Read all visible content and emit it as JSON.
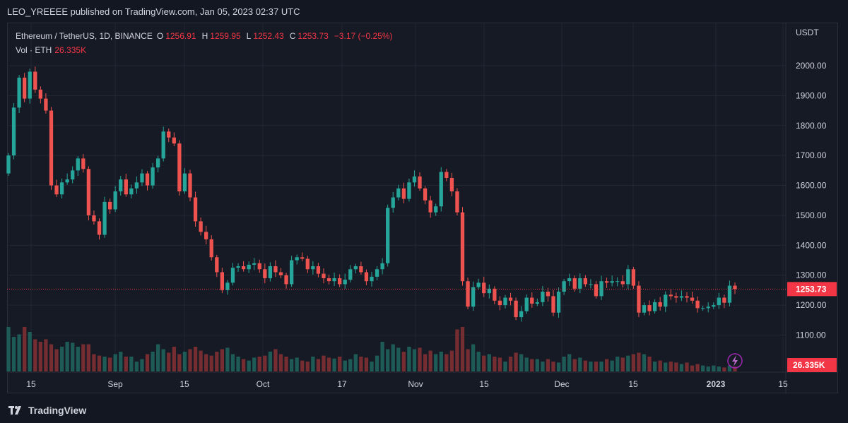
{
  "header": {
    "published_text": "LEO_YREEEE published on TradingView.com, Jan 05, 2023 02:37 UTC"
  },
  "footer": {
    "brand": "TradingView"
  },
  "legend": {
    "symbol": "Ethereum / TetherUS, 1D, BINANCE",
    "o_label": "O",
    "o_value": "1256.91",
    "h_label": "H",
    "h_value": "1259.95",
    "l_label": "L",
    "l_value": "1252.43",
    "c_label": "C",
    "c_value": "1253.73",
    "change": "−3.17 (−0.25%)",
    "vol_label": "Vol · ETH",
    "vol_value": "26.335K"
  },
  "colors": {
    "up": "#26a69a",
    "down": "#ef5350",
    "up_vol": "#1f5f5a",
    "down_vol": "#7a2e33",
    "badge": "#f23645",
    "grid": "#232733"
  },
  "chart_data": {
    "type": "candlestick",
    "currency_label": "USDT",
    "y_ticks": [
      1100,
      1200,
      1300,
      1400,
      1500,
      1600,
      1700,
      1800,
      1900,
      2000
    ],
    "y_tick_labels": [
      "1100.00",
      "1200.00",
      "1300.00",
      "1400.00",
      "1500.00",
      "1600.00",
      "1700.00",
      "1800.00",
      "1900.00",
      "2000.00"
    ],
    "x_tick_labels": [
      "15",
      "Sep",
      "15",
      "Oct",
      "17",
      "Nov",
      "15",
      "Dec",
      "15",
      "2023",
      "15"
    ],
    "last_price": 1253.73,
    "last_price_label": "1253.73",
    "last_volume_label": "26.335K",
    "closes": [
      1700,
      1860,
      1960,
      1890,
      1980,
      1920,
      1890,
      1850,
      1600,
      1570,
      1610,
      1620,
      1650,
      1690,
      1655,
      1500,
      1480,
      1435,
      1545,
      1520,
      1580,
      1620,
      1570,
      1590,
      1610,
      1640,
      1600,
      1660,
      1690,
      1780,
      1760,
      1740,
      1580,
      1640,
      1560,
      1480,
      1445,
      1420,
      1360,
      1310,
      1250,
      1275,
      1325,
      1330,
      1320,
      1335,
      1340,
      1320,
      1290,
      1330,
      1310,
      1300,
      1270,
      1350,
      1360,
      1355,
      1320,
      1330,
      1305,
      1290,
      1280,
      1290,
      1270,
      1285,
      1320,
      1330,
      1310,
      1280,
      1295,
      1320,
      1340,
      1525,
      1560,
      1590,
      1555,
      1610,
      1630,
      1590,
      1550,
      1510,
      1530,
      1645,
      1625,
      1580,
      1510,
      1280,
      1195,
      1260,
      1275,
      1240,
      1255,
      1215,
      1200,
      1225,
      1215,
      1160,
      1180,
      1225,
      1205,
      1210,
      1245,
      1230,
      1175,
      1245,
      1280,
      1290,
      1255,
      1290,
      1270,
      1270,
      1230,
      1280,
      1275,
      1280,
      1280,
      1270,
      1320,
      1265,
      1175,
      1200,
      1180,
      1210,
      1195,
      1235,
      1230,
      1225,
      1230,
      1225,
      1215,
      1190,
      1190,
      1195,
      1200,
      1225,
      1208,
      1265,
      1253.73
    ],
    "volume_levels": [
      0.9,
      0.7,
      0.75,
      0.9,
      0.8,
      0.65,
      0.6,
      0.65,
      0.55,
      0.45,
      0.5,
      0.6,
      0.58,
      0.5,
      0.55,
      0.55,
      0.35,
      0.32,
      0.3,
      0.28,
      0.35,
      0.4,
      0.3,
      0.3,
      0.2,
      0.25,
      0.35,
      0.4,
      0.55,
      0.45,
      0.38,
      0.5,
      0.35,
      0.4,
      0.45,
      0.5,
      0.42,
      0.35,
      0.32,
      0.4,
      0.45,
      0.48,
      0.35,
      0.3,
      0.25,
      0.22,
      0.28,
      0.3,
      0.32,
      0.4,
      0.45,
      0.35,
      0.3,
      0.25,
      0.28,
      0.22,
      0.2,
      0.3,
      0.25,
      0.32,
      0.28,
      0.26,
      0.3,
      0.22,
      0.25,
      0.35,
      0.3,
      0.28,
      0.2,
      0.32,
      0.6,
      0.45,
      0.55,
      0.48,
      0.4,
      0.5,
      0.45,
      0.48,
      0.35,
      0.42,
      0.35,
      0.4,
      0.35,
      0.42,
      0.85,
      0.9,
      0.45,
      0.55,
      0.4,
      0.32,
      0.35,
      0.3,
      0.28,
      0.2,
      0.3,
      0.38,
      0.35,
      0.28,
      0.25,
      0.25,
      0.2,
      0.25,
      0.2,
      0.18,
      0.3,
      0.35,
      0.25,
      0.28,
      0.22,
      0.2,
      0.2,
      0.2,
      0.25,
      0.22,
      0.3,
      0.28,
      0.32,
      0.35,
      0.38,
      0.35,
      0.3,
      0.2,
      0.22,
      0.18,
      0.2,
      0.18,
      0.15,
      0.18,
      0.12,
      0.15,
      0.12,
      0.1,
      0.12,
      0.1,
      0.08,
      0.12,
      0.1
    ]
  }
}
